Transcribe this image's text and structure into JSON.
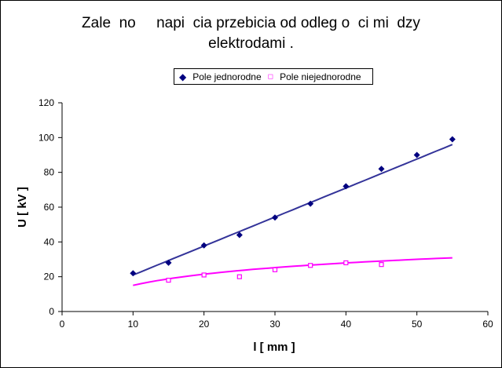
{
  "chart_data": {
    "type": "scatter",
    "title_line1": "Zale  no     napi  cia przebicia od odleg o  ci mi  dzy",
    "title_line2": "elektrodami .",
    "xlabel": "l [ mm ]",
    "ylabel": "U [ kV ]",
    "xlim": [
      0,
      60
    ],
    "ylim": [
      0,
      120
    ],
    "xticks": [
      0,
      10,
      20,
      30,
      40,
      50,
      60
    ],
    "yticks": [
      0,
      20,
      40,
      60,
      80,
      100,
      120
    ],
    "grid": false,
    "legend_position": "top",
    "series": [
      {
        "name": "Pole jednorodne",
        "color": "#000080",
        "trend_color": "#333399",
        "marker": "filled-diamond",
        "x": [
          10,
          15,
          20,
          25,
          30,
          35,
          40,
          45,
          50,
          55
        ],
        "y": [
          22,
          28,
          38,
          44,
          54,
          62,
          72,
          82,
          90,
          99
        ],
        "trendline": {
          "type": "linear",
          "slope": 1.667,
          "intercept": 4.3
        }
      },
      {
        "name": "Pole niejednorodne",
        "color": "#FF00FF",
        "trend_color": "#FF00FF",
        "marker": "open-square",
        "x": [
          15,
          20,
          25,
          30,
          35,
          40,
          45
        ],
        "y": [
          18,
          21,
          20,
          24,
          26.5,
          28,
          27
        ],
        "trendline": {
          "type": "logarithmic",
          "a": 9.3,
          "b": -6.4
        }
      }
    ]
  }
}
